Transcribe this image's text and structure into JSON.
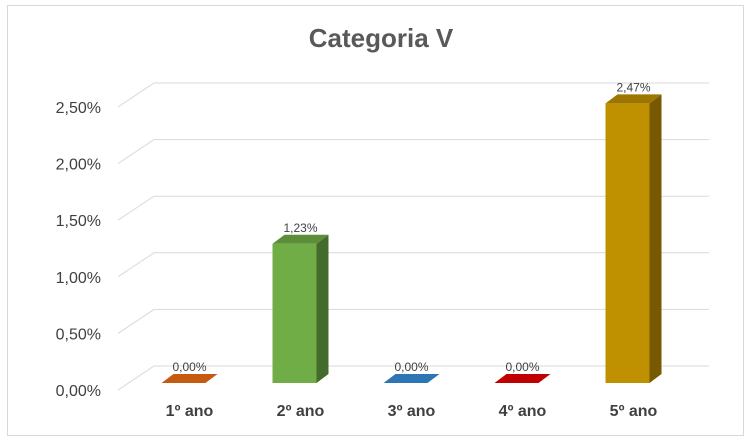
{
  "chart_data": {
    "type": "bar",
    "title": "Categoria V",
    "categories": [
      "1º ano",
      "2º ano",
      "3º ano",
      "4º ano",
      "5º ano"
    ],
    "values": [
      0.0,
      1.23,
      0.0,
      0.0,
      2.47
    ],
    "data_labels": [
      "0,00%",
      "1,23%",
      "0,00%",
      "0,00%",
      "2,47%"
    ],
    "ytick_labels": [
      "0,00%",
      "0,50%",
      "1,00%",
      "1,50%",
      "2,00%",
      "2,50%"
    ],
    "yticks": [
      0,
      0.5,
      1.0,
      1.5,
      2.0,
      2.5
    ],
    "ylim": [
      0,
      2.5
    ],
    "xlabel": "",
    "ylabel": "",
    "grid": true,
    "legend": "none",
    "bar_colors": [
      "#c55a11",
      "#70ad47",
      "#2e75b6",
      "#c00000",
      "#bf9000"
    ]
  }
}
